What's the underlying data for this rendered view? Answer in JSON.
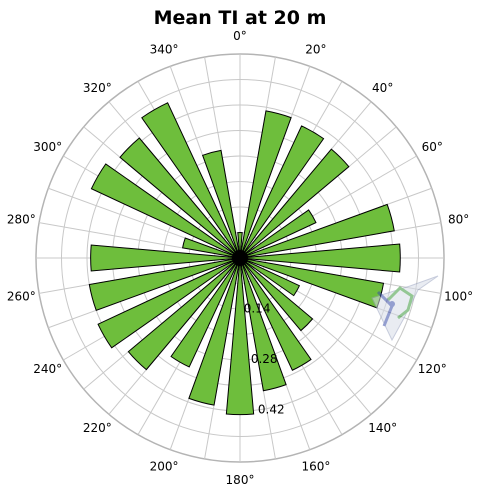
{
  "chart_data": {
    "type": "polar-bar",
    "title": "Mean TI at 20 m",
    "direction_ticks": [
      "0°",
      "20°",
      "40°",
      "60°",
      "80°",
      "100°",
      "120°",
      "140°",
      "160°",
      "180°",
      "200°",
      "220°",
      "240°",
      "260°",
      "280°",
      "300°",
      "320°",
      "340°"
    ],
    "direction_values": [
      0,
      20,
      40,
      60,
      80,
      100,
      120,
      140,
      160,
      180,
      200,
      220,
      240,
      260,
      280,
      300,
      320,
      340
    ],
    "ring_ticks": [
      "0.14",
      "0.28",
      "0.42"
    ],
    "ring_values": [
      0.14,
      0.28,
      0.42
    ],
    "rmax": 0.56,
    "rings_count": 8,
    "spokes_every_deg": 10,
    "sectors": {
      "width_deg": 10,
      "directions": [
        0,
        15,
        30,
        45,
        60,
        75,
        90,
        105,
        120,
        135,
        150,
        165,
        180,
        195,
        210,
        225,
        240,
        255,
        270,
        285,
        300,
        315,
        330,
        345
      ],
      "values": [
        0.07,
        0.41,
        0.4,
        0.39,
        0.23,
        0.43,
        0.44,
        0.4,
        0.18,
        0.26,
        0.34,
        0.37,
        0.43,
        0.41,
        0.33,
        0.4,
        0.43,
        0.42,
        0.41,
        0.16,
        0.45,
        0.43,
        0.47,
        0.3
      ]
    },
    "colors": {
      "bar_fill": "#6ebe3c",
      "bar_stroke": "#000000",
      "grid": "#c8c8c8",
      "outer_ring": "#b4b4b4"
    },
    "grid": true,
    "legend": "none"
  },
  "logo": {
    "name": "wind-turbine-logo-icon"
  }
}
